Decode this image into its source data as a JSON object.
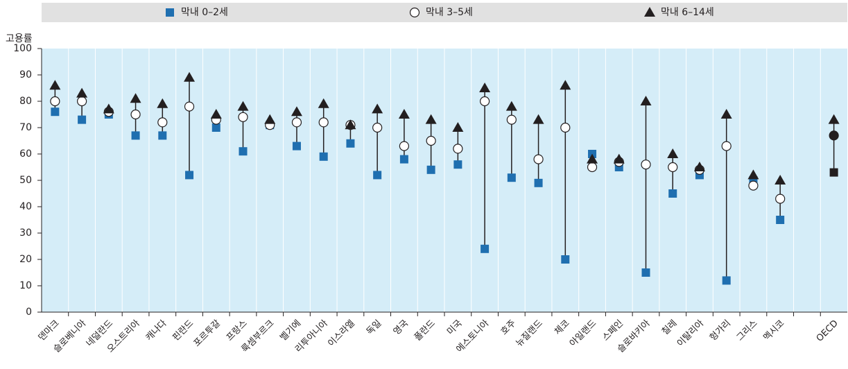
{
  "chart_data": {
    "type": "dot_range",
    "y_label": "고용률",
    "categories": [
      "덴마크",
      "슬로베니아",
      "네덜란드",
      "오스트리아",
      "캐나다",
      "핀란드",
      "포르투갈",
      "프랑스",
      "룩셈부르크",
      "벨기에",
      "리투아니아",
      "이스라엘",
      "독일",
      "영국",
      "폴란드",
      "미국",
      "에스토니아",
      "호주",
      "뉴질랜드",
      "체코",
      "아일랜드",
      "스페인",
      "슬로바키아",
      "칠레",
      "이탈리아",
      "헝가리",
      "그리스",
      "멕시코",
      null,
      "OECD"
    ],
    "series": [
      {
        "name": "막내 0–2세",
        "marker": "square",
        "color": "#1f6fb0",
        "values": [
          76,
          73,
          75,
          67,
          67,
          52,
          70,
          61,
          71,
          63,
          59,
          64,
          52,
          58,
          54,
          56,
          24,
          51,
          49,
          20,
          60,
          55,
          15,
          45,
          52,
          12,
          50,
          35,
          null,
          53
        ]
      },
      {
        "name": "막내 3–5세",
        "marker": "circle",
        "color": "#ffffff",
        "values": [
          80,
          80,
          76,
          75,
          72,
          78,
          73,
          74,
          71,
          72,
          72,
          71,
          70,
          63,
          65,
          62,
          80,
          73,
          58,
          70,
          55,
          57,
          56,
          55,
          54,
          63,
          48,
          43,
          null,
          67
        ]
      },
      {
        "name": "막내 6–14세",
        "marker": "triangle",
        "color": "#231f20",
        "values": [
          86,
          83,
          77,
          81,
          79,
          89,
          75,
          78,
          73,
          76,
          79,
          71,
          77,
          75,
          73,
          70,
          85,
          78,
          73,
          86,
          58,
          58,
          80,
          60,
          55,
          75,
          52,
          50,
          null,
          73
        ]
      }
    ],
    "highlight": {
      "category": "OECD",
      "color": "#231f20"
    },
    "ylim": [
      0,
      100
    ],
    "yticks": [
      0,
      10,
      20,
      30,
      40,
      50,
      60,
      70,
      80,
      90,
      100
    ],
    "grid": true,
    "legend": "top"
  }
}
